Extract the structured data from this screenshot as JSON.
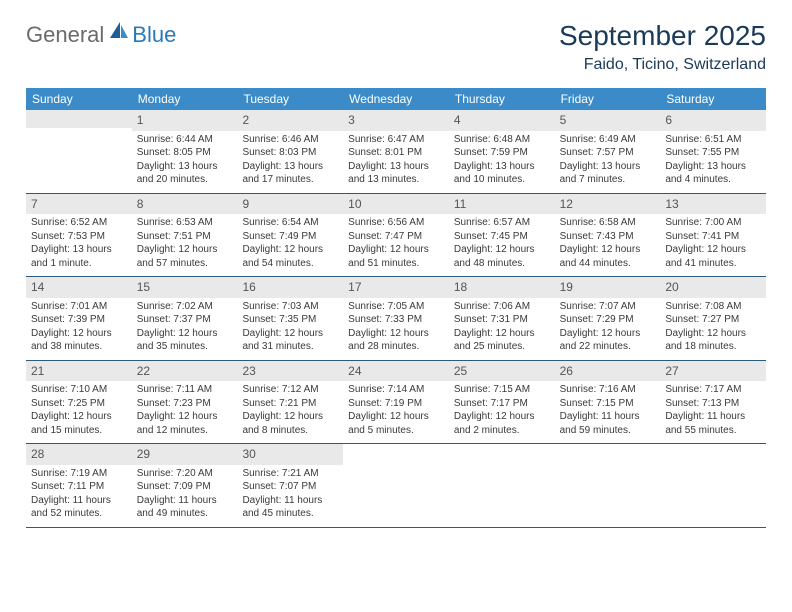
{
  "logo": {
    "general": "General",
    "blue": "Blue"
  },
  "title": "September 2025",
  "location": "Faido, Ticino, Switzerland",
  "colors": {
    "header_bg": "#3b8bc8",
    "header_text": "#ffffff",
    "title_text": "#1b3a57",
    "daynum_bg": "#e9e9e9",
    "body_text": "#3a3a3a",
    "rule": "#2d5a7a",
    "logo_gray": "#6b6b6b",
    "logo_blue": "#2a7ab8"
  },
  "weekdays": [
    "Sunday",
    "Monday",
    "Tuesday",
    "Wednesday",
    "Thursday",
    "Friday",
    "Saturday"
  ],
  "weeks": [
    [
      null,
      {
        "n": "1",
        "sr": "6:44 AM",
        "ss": "8:05 PM",
        "dl": "13 hours and 20 minutes."
      },
      {
        "n": "2",
        "sr": "6:46 AM",
        "ss": "8:03 PM",
        "dl": "13 hours and 17 minutes."
      },
      {
        "n": "3",
        "sr": "6:47 AM",
        "ss": "8:01 PM",
        "dl": "13 hours and 13 minutes."
      },
      {
        "n": "4",
        "sr": "6:48 AM",
        "ss": "7:59 PM",
        "dl": "13 hours and 10 minutes."
      },
      {
        "n": "5",
        "sr": "6:49 AM",
        "ss": "7:57 PM",
        "dl": "13 hours and 7 minutes."
      },
      {
        "n": "6",
        "sr": "6:51 AM",
        "ss": "7:55 PM",
        "dl": "13 hours and 4 minutes."
      }
    ],
    [
      {
        "n": "7",
        "sr": "6:52 AM",
        "ss": "7:53 PM",
        "dl": "13 hours and 1 minute."
      },
      {
        "n": "8",
        "sr": "6:53 AM",
        "ss": "7:51 PM",
        "dl": "12 hours and 57 minutes."
      },
      {
        "n": "9",
        "sr": "6:54 AM",
        "ss": "7:49 PM",
        "dl": "12 hours and 54 minutes."
      },
      {
        "n": "10",
        "sr": "6:56 AM",
        "ss": "7:47 PM",
        "dl": "12 hours and 51 minutes."
      },
      {
        "n": "11",
        "sr": "6:57 AM",
        "ss": "7:45 PM",
        "dl": "12 hours and 48 minutes."
      },
      {
        "n": "12",
        "sr": "6:58 AM",
        "ss": "7:43 PM",
        "dl": "12 hours and 44 minutes."
      },
      {
        "n": "13",
        "sr": "7:00 AM",
        "ss": "7:41 PM",
        "dl": "12 hours and 41 minutes."
      }
    ],
    [
      {
        "n": "14",
        "sr": "7:01 AM",
        "ss": "7:39 PM",
        "dl": "12 hours and 38 minutes."
      },
      {
        "n": "15",
        "sr": "7:02 AM",
        "ss": "7:37 PM",
        "dl": "12 hours and 35 minutes."
      },
      {
        "n": "16",
        "sr": "7:03 AM",
        "ss": "7:35 PM",
        "dl": "12 hours and 31 minutes."
      },
      {
        "n": "17",
        "sr": "7:05 AM",
        "ss": "7:33 PM",
        "dl": "12 hours and 28 minutes."
      },
      {
        "n": "18",
        "sr": "7:06 AM",
        "ss": "7:31 PM",
        "dl": "12 hours and 25 minutes."
      },
      {
        "n": "19",
        "sr": "7:07 AM",
        "ss": "7:29 PM",
        "dl": "12 hours and 22 minutes."
      },
      {
        "n": "20",
        "sr": "7:08 AM",
        "ss": "7:27 PM",
        "dl": "12 hours and 18 minutes."
      }
    ],
    [
      {
        "n": "21",
        "sr": "7:10 AM",
        "ss": "7:25 PM",
        "dl": "12 hours and 15 minutes."
      },
      {
        "n": "22",
        "sr": "7:11 AM",
        "ss": "7:23 PM",
        "dl": "12 hours and 12 minutes."
      },
      {
        "n": "23",
        "sr": "7:12 AM",
        "ss": "7:21 PM",
        "dl": "12 hours and 8 minutes."
      },
      {
        "n": "24",
        "sr": "7:14 AM",
        "ss": "7:19 PM",
        "dl": "12 hours and 5 minutes."
      },
      {
        "n": "25",
        "sr": "7:15 AM",
        "ss": "7:17 PM",
        "dl": "12 hours and 2 minutes."
      },
      {
        "n": "26",
        "sr": "7:16 AM",
        "ss": "7:15 PM",
        "dl": "11 hours and 59 minutes."
      },
      {
        "n": "27",
        "sr": "7:17 AM",
        "ss": "7:13 PM",
        "dl": "11 hours and 55 minutes."
      }
    ],
    [
      {
        "n": "28",
        "sr": "7:19 AM",
        "ss": "7:11 PM",
        "dl": "11 hours and 52 minutes."
      },
      {
        "n": "29",
        "sr": "7:20 AM",
        "ss": "7:09 PM",
        "dl": "11 hours and 49 minutes."
      },
      {
        "n": "30",
        "sr": "7:21 AM",
        "ss": "7:07 PM",
        "dl": "11 hours and 45 minutes."
      },
      null,
      null,
      null,
      null
    ]
  ],
  "labels": {
    "sunrise": "Sunrise:",
    "sunset": "Sunset:",
    "daylight": "Daylight:"
  }
}
